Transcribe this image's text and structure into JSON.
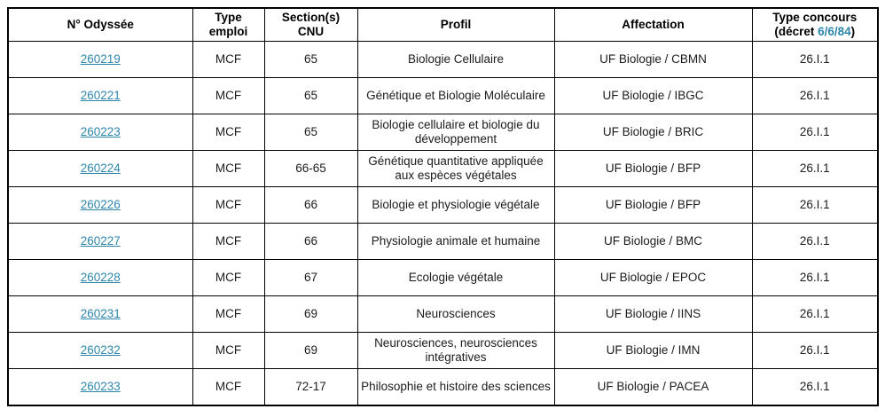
{
  "colors": {
    "link": "#2E86AB",
    "border": "#000000",
    "header_text": "#000000",
    "cell_text": "#1c1c1c",
    "background": "#ffffff"
  },
  "table": {
    "headers": {
      "odyssee": "N° Odyssée",
      "type_emploi": "Type emploi",
      "section_cnu": "Section(s) CNU",
      "profil": "Profil",
      "affectation": "Affectation",
      "type_concours_line1": "Type concours",
      "type_concours_prefix": "(décret ",
      "type_concours_link": "6/6/84",
      "type_concours_suffix": ")"
    },
    "rows": [
      {
        "odyssee": "260219",
        "type_emploi": "MCF",
        "section_cnu": "65",
        "profil": "Biologie Cellulaire",
        "affectation": "UF Biologie / CBMN",
        "type_concours": "26.I.1"
      },
      {
        "odyssee": "260221",
        "type_emploi": "MCF",
        "section_cnu": "65",
        "profil": "Génétique et Biologie Moléculaire",
        "affectation": "UF Biologie / IBGC",
        "type_concours": "26.I.1"
      },
      {
        "odyssee": "260223",
        "type_emploi": "MCF",
        "section_cnu": "65",
        "profil": "Biologie cellulaire et biologie du développement",
        "affectation": "UF Biologie / BRIC",
        "type_concours": "26.I.1"
      },
      {
        "odyssee": "260224",
        "type_emploi": "MCF",
        "section_cnu": "66-65",
        "profil": "Génétique quantitative appliquée aux espèces végétales",
        "affectation": "UF Biologie / BFP",
        "type_concours": "26.I.1"
      },
      {
        "odyssee": "260226",
        "type_emploi": "MCF",
        "section_cnu": "66",
        "profil": "Biologie et physiologie végétale",
        "affectation": "UF Biologie / BFP",
        "type_concours": "26.I.1"
      },
      {
        "odyssee": "260227",
        "type_emploi": "MCF",
        "section_cnu": "66",
        "profil": "Physiologie animale et humaine",
        "affectation": "UF Biologie / BMC",
        "type_concours": "26.I.1"
      },
      {
        "odyssee": "260228",
        "type_emploi": "MCF",
        "section_cnu": "67",
        "profil": "Ecologie végétale",
        "affectation": "UF Biologie / EPOC",
        "type_concours": "26.I.1"
      },
      {
        "odyssee": "260231",
        "type_emploi": "MCF",
        "section_cnu": "69",
        "profil": "Neurosciences",
        "affectation": "UF Biologie / IINS",
        "type_concours": "26.I.1"
      },
      {
        "odyssee": "260232",
        "type_emploi": "MCF",
        "section_cnu": "69",
        "profil": "Neurosciences, neurosciences intégratives",
        "affectation": "UF Biologie / IMN",
        "type_concours": "26.I.1"
      },
      {
        "odyssee": "260233",
        "type_emploi": "MCF",
        "section_cnu": "72-17",
        "profil": "Philosophie et histoire des sciences",
        "affectation": "UF Biologie / PACEA",
        "type_concours": "26.I.1"
      }
    ]
  }
}
